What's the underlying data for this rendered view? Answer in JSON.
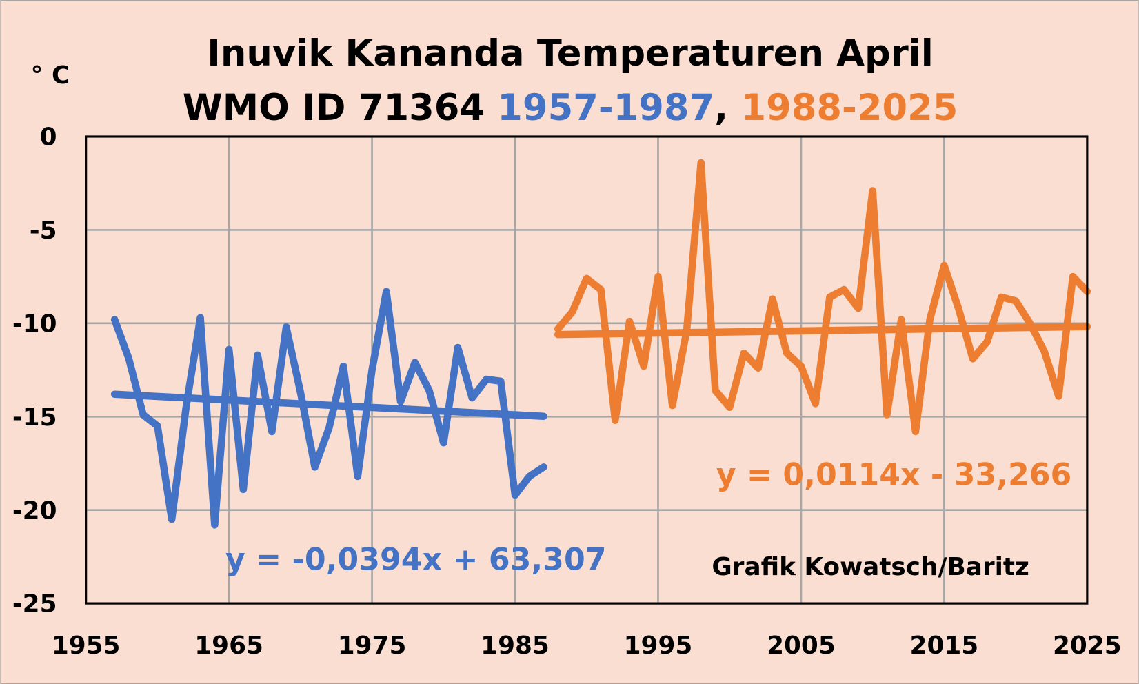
{
  "chart_data": {
    "type": "line",
    "title_line1": "Inuvik Kananda Temperaturen April",
    "title_line2_prefix": "WMO ID 71364 ",
    "title_range1": "1957-1987",
    "title_sep": ", ",
    "title_range2": "1988-2025",
    "ylabel": "° C",
    "xlim": [
      1955,
      2025
    ],
    "ylim": [
      -25,
      0
    ],
    "xticks": [
      "1955",
      "1965",
      "1975",
      "1985",
      "1995",
      "2005",
      "2015",
      "2025"
    ],
    "yticks": [
      "0",
      "-5",
      "-10",
      "-15",
      "-20",
      "-25"
    ],
    "grid": true,
    "credit": "Grafik Kowatsch/Baritz",
    "colors": {
      "series1": "#4472C4",
      "series2": "#ED7D31",
      "background": "#FADED1",
      "grid": "#A6A6A6"
    },
    "series": [
      {
        "name": "1957-1987",
        "x": [
          1957,
          1958,
          1959,
          1960,
          1961,
          1962,
          1963,
          1964,
          1965,
          1966,
          1967,
          1968,
          1969,
          1970,
          1971,
          1972,
          1973,
          1974,
          1975,
          1976,
          1977,
          1978,
          1979,
          1980,
          1981,
          1982,
          1983,
          1984,
          1985,
          1986,
          1987
        ],
        "values": [
          -9.8,
          -11.9,
          -14.9,
          -15.5,
          -20.5,
          -14.5,
          -9.7,
          -20.8,
          -11.4,
          -18.9,
          -11.7,
          -15.8,
          -10.2,
          -13.7,
          -17.7,
          -15.6,
          -12.3,
          -18.2,
          -12.5,
          -8.3,
          -14.2,
          -12.1,
          -13.6,
          -16.4,
          -11.3,
          -14.0,
          -13.0,
          -13.1,
          -19.2,
          -18.2,
          -17.7
        ],
        "trend": {
          "slope": -0.0394,
          "intercept": 63.307,
          "label": "y = -0,0394x + 63,307"
        }
      },
      {
        "name": "1988-2025",
        "x": [
          1988,
          1989,
          1990,
          1991,
          1992,
          1993,
          1994,
          1995,
          1996,
          1997,
          1998,
          1999,
          2000,
          2001,
          2002,
          2003,
          2004,
          2005,
          2006,
          2007,
          2008,
          2009,
          2010,
          2011,
          2012,
          2013,
          2014,
          2015,
          2016,
          2017,
          2018,
          2019,
          2020,
          2021,
          2022,
          2023,
          2024,
          2025
        ],
        "values": [
          -10.3,
          -9.4,
          -7.6,
          -8.2,
          -15.2,
          -9.9,
          -12.3,
          -7.5,
          -14.4,
          -10.4,
          -1.4,
          -13.6,
          -14.5,
          -11.6,
          -12.4,
          -8.7,
          -11.6,
          -12.3,
          -14.3,
          -8.6,
          -8.2,
          -9.2,
          -2.9,
          -14.9,
          -9.8,
          -15.8,
          -9.8,
          -6.9,
          -9.2,
          -11.9,
          -11.0,
          -8.6,
          -8.8,
          -10.0,
          -11.5,
          -13.9,
          -7.5,
          -8.3
        ],
        "trend": {
          "slope": 0.0114,
          "intercept": -33.266,
          "label": "y = 0,0114x - 33,266"
        }
      }
    ]
  }
}
